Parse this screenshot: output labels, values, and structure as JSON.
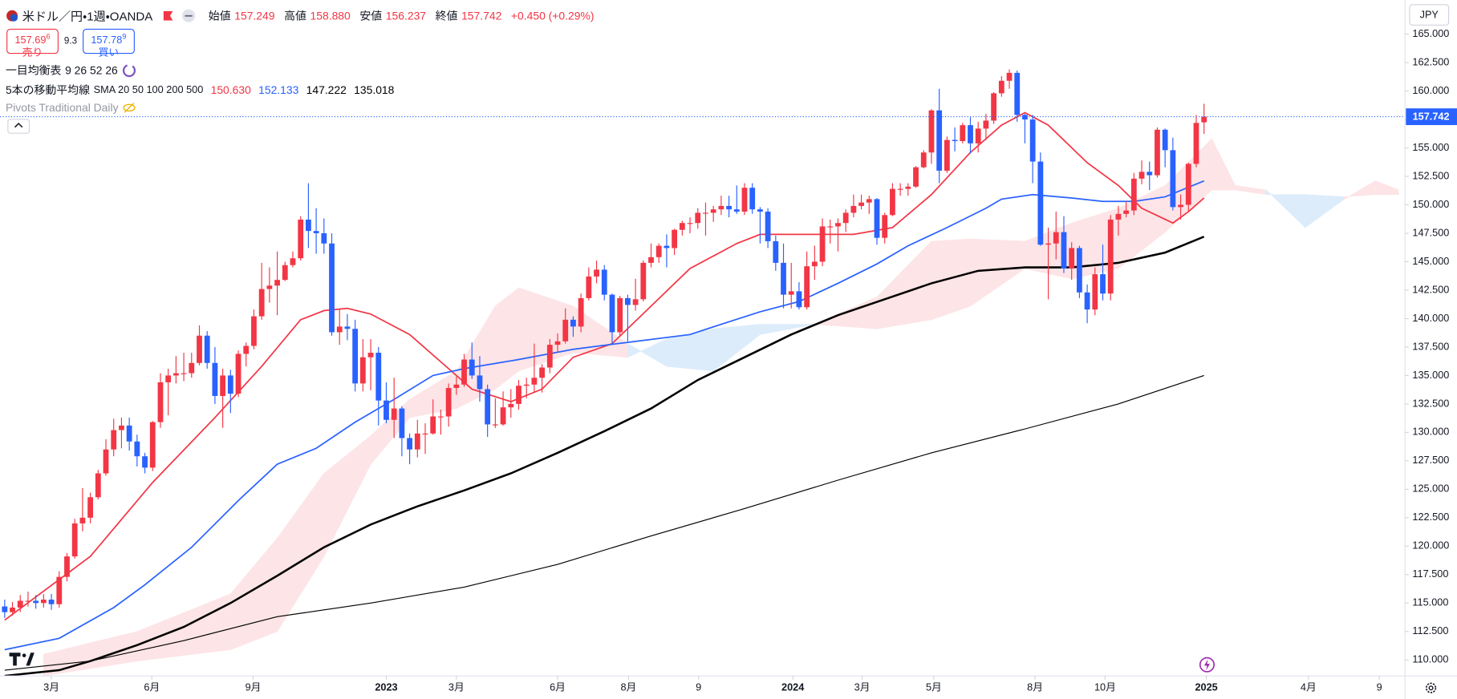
{
  "chart_data": {
    "type": "candlestick",
    "title": "米ドル／円・1週・OANDA",
    "ohlc_legend": [
      {
        "label": "始値",
        "value": "157.249"
      },
      {
        "label": "高値",
        "value": "158.880"
      },
      {
        "label": "安値",
        "value": "156.237"
      },
      {
        "label": "終値",
        "value": "157.742"
      }
    ],
    "change": "+0.450 (+0.29%)",
    "sell": {
      "price": "157.69",
      "pip": "6",
      "label": "売り"
    },
    "spread": "9.3",
    "buy": {
      "price": "157.78",
      "pip": "9",
      "label": "買い"
    },
    "indicators": [
      {
        "name": "一目均衡表",
        "params": "9 26 52 26"
      },
      {
        "name": "5本の移動平均線",
        "params": "SMA 20 50 100 200 500",
        "values": [
          "150.630",
          "152.133",
          "147.222",
          "135.018"
        ]
      },
      {
        "name": "Pivots Traditional Daily"
      }
    ],
    "currency": "JPY",
    "last_price": 157.742,
    "up_color": "#f23645",
    "down_color": "#2962ff",
    "open": [
      114.7,
      114.2,
      114.6,
      115.2,
      115.2,
      115.0,
      115.3,
      114.9,
      117.3,
      119.1,
      122.0,
      122.5,
      124.3,
      126.4,
      128.5,
      130.2,
      130.6,
      129.2,
      127.9,
      126.9,
      130.9,
      134.4,
      135.0,
      135.2,
      135.2,
      136.1,
      138.5,
      136.1,
      133.2,
      135.0,
      133.4,
      136.9,
      137.6,
      140.2,
      142.6,
      142.9,
      143.4,
      144.7,
      145.3,
      148.7,
      147.7,
      147.5,
      146.6,
      138.8,
      139.3,
      139.1,
      134.3,
      136.6,
      137.0,
      132.8,
      131.1,
      132.1,
      129.5,
      128.5,
      129.9,
      129.9,
      131.4,
      131.4,
      133.9,
      134.2,
      136.4,
      135.0,
      133.8,
      130.7,
      130.7,
      132.2,
      132.5,
      134.1,
      134.2,
      134.8,
      135.7,
      137.7,
      138.0,
      139.9,
      139.3,
      141.8,
      143.7,
      144.3,
      142.1,
      138.8,
      141.8,
      141.2,
      141.7,
      144.9,
      145.4,
      146.4,
      146.2,
      147.8,
      148.4,
      148.4,
      149.3,
      149.3,
      149.6,
      149.9,
      149.6,
      149.4,
      151.5,
      149.6,
      149.4,
      146.8,
      144.9,
      142.1,
      142.4,
      141.0,
      144.6,
      145.0,
      148.1,
      148.1,
      148.4,
      149.3,
      149.9,
      150.2,
      150.5,
      147.1,
      149.1,
      151.4,
      151.4,
      151.6,
      153.3,
      154.6,
      158.3,
      153.0,
      155.7,
      155.6,
      157.0,
      155.4,
      156.7,
      157.4,
      159.8,
      160.9,
      161.6,
      157.9,
      157.5,
      153.8,
      146.5,
      146.6,
      147.6,
      144.4,
      146.2,
      142.3,
      140.8,
      143.9,
      142.2,
      148.7,
      149.2,
      149.5,
      152.3,
      152.9,
      152.6,
      156.6,
      154.8,
      149.8,
      150.0,
      153.6,
      157.249
    ],
    "high": [
      115.3,
      115.1,
      115.7,
      116.0,
      115.7,
      115.8,
      115.8,
      117.8,
      119.4,
      122.4,
      125.1,
      124.7,
      126.7,
      129.4,
      131.2,
      131.3,
      131.3,
      129.8,
      128.2,
      131.0,
      135.2,
      135.6,
      136.7,
      137.0,
      137.0,
      139.4,
      138.9,
      137.5,
      135.6,
      135.5,
      137.2,
      137.9,
      140.8,
      144.9,
      144.5,
      145.9,
      145.0,
      145.9,
      149.0,
      151.9,
      149.7,
      148.8,
      147.5,
      140.8,
      140.4,
      139.9,
      138.2,
      138.2,
      137.5,
      134.4,
      134.8,
      132.3,
      129.9,
      131.1,
      130.8,
      132.9,
      132.0,
      134.3,
      134.9,
      136.9,
      137.9,
      136.7,
      134.2,
      133.0,
      133.6,
      133.8,
      134.6,
      134.8,
      137.8,
      136.0,
      138.2,
      138.7,
      140.9,
      140.2,
      142.2,
      144.5,
      145.1,
      144.7,
      142.2,
      142.0,
      142.1,
      143.5,
      145.1,
      146.6,
      146.6,
      147.4,
      147.9,
      148.6,
      148.9,
      149.7,
      150.2,
      149.9,
      150.8,
      150.8,
      151.7,
      151.9,
      151.9,
      149.8,
      149.7,
      147.3,
      146.6,
      144.9,
      143.2,
      145.9,
      146.4,
      148.8,
      148.7,
      148.8,
      149.6,
      150.9,
      150.9,
      150.8,
      150.6,
      149.3,
      151.9,
      151.9,
      151.9,
      153.4,
      154.8,
      158.4,
      160.2,
      156.0,
      156.8,
      157.2,
      157.7,
      157.3,
      158.0,
      159.9,
      161.3,
      161.9,
      161.8,
      158.0,
      157.9,
      154.6,
      148.0,
      149.4,
      149.0,
      146.7,
      146.4,
      143.0,
      144.5,
      146.5,
      149.1,
      149.9,
      150.3,
      152.8,
      153.9,
      153.8,
      156.8,
      156.7,
      155.9,
      150.9,
      153.7,
      157.9,
      158.88
    ],
    "low": [
      113.7,
      113.9,
      114.2,
      114.7,
      114.5,
      114.6,
      114.4,
      114.6,
      116.9,
      118.9,
      121.3,
      122.0,
      124.1,
      126.2,
      127.9,
      128.6,
      128.4,
      127.0,
      126.4,
      126.6,
      130.4,
      131.5,
      134.3,
      134.5,
      134.8,
      135.9,
      135.6,
      132.5,
      130.4,
      131.7,
      133.1,
      135.8,
      137.3,
      139.9,
      141.4,
      140.3,
      143.3,
      144.5,
      145.1,
      146.2,
      145.7,
      145.7,
      138.5,
      137.7,
      138.1,
      133.6,
      133.6,
      133.7,
      130.6,
      130.8,
      129.5,
      127.9,
      127.2,
      127.8,
      128.1,
      129.8,
      129.8,
      130.5,
      133.3,
      134.0,
      134.7,
      132.7,
      129.6,
      130.4,
      130.6,
      131.3,
      132.0,
      133.0,
      133.5,
      133.5,
      135.2,
      137.0,
      137.8,
      138.4,
      138.8,
      141.6,
      143.1,
      141.6,
      137.7,
      138.4,
      138.0,
      140.7,
      141.5,
      144.5,
      144.9,
      144.5,
      145.6,
      147.3,
      147.5,
      147.9,
      147.3,
      148.5,
      149.1,
      148.9,
      149.2,
      149.1,
      149.2,
      146.6,
      146.2,
      144.2,
      140.9,
      140.9,
      140.8,
      140.8,
      143.4,
      144.6,
      146.6,
      145.9,
      147.6,
      148.9,
      149.6,
      149.2,
      146.5,
      146.6,
      149.0,
      150.8,
      150.8,
      151.5,
      153.2,
      153.6,
      151.9,
      152.8,
      154.7,
      155.4,
      154.5,
      154.6,
      155.7,
      157.1,
      159.5,
      160.2,
      157.3,
      155.4,
      151.9,
      146.4,
      141.7,
      145.2,
      144.0,
      143.4,
      141.8,
      139.6,
      140.3,
      141.6,
      141.6,
      147.3,
      148.9,
      149.1,
      151.8,
      151.3,
      152.4,
      153.3,
      149.5,
      148.7,
      149.4,
      153.3,
      156.237
    ],
    "close": [
      114.2,
      114.6,
      115.2,
      115.2,
      115.0,
      115.3,
      114.9,
      117.3,
      119.1,
      122.0,
      122.5,
      124.3,
      126.4,
      128.5,
      130.2,
      130.6,
      129.2,
      127.9,
      126.9,
      130.9,
      134.4,
      135.0,
      135.2,
      135.2,
      136.1,
      138.5,
      136.1,
      133.2,
      135.0,
      133.4,
      136.9,
      137.6,
      140.2,
      142.6,
      142.9,
      143.4,
      144.7,
      145.3,
      148.7,
      147.7,
      147.5,
      146.6,
      138.8,
      139.3,
      139.1,
      134.3,
      136.6,
      137.0,
      132.8,
      131.1,
      132.1,
      129.5,
      128.5,
      129.9,
      129.9,
      131.4,
      131.4,
      133.9,
      134.2,
      136.4,
      135.0,
      133.8,
      130.7,
      130.7,
      132.2,
      132.5,
      134.1,
      134.2,
      134.8,
      135.7,
      137.7,
      138.0,
      139.9,
      139.3,
      141.8,
      143.7,
      144.3,
      142.1,
      138.8,
      141.8,
      141.2,
      141.7,
      144.9,
      145.4,
      146.4,
      146.2,
      147.8,
      148.4,
      148.4,
      149.3,
      149.3,
      149.6,
      149.9,
      149.6,
      149.4,
      151.5,
      149.6,
      149.4,
      146.8,
      144.9,
      142.1,
      142.4,
      141.0,
      144.6,
      145.0,
      148.1,
      148.1,
      148.4,
      149.3,
      149.9,
      150.2,
      150.5,
      147.1,
      149.1,
      151.4,
      151.4,
      151.6,
      153.3,
      154.6,
      158.3,
      153.0,
      155.7,
      155.6,
      157.0,
      155.4,
      156.7,
      157.4,
      159.8,
      160.9,
      161.6,
      157.9,
      157.5,
      153.8,
      146.5,
      146.6,
      147.6,
      144.4,
      146.2,
      142.3,
      140.8,
      143.9,
      142.2,
      148.7,
      149.2,
      149.5,
      152.3,
      152.9,
      152.6,
      156.6,
      154.8,
      149.8,
      150.0,
      153.6,
      157.2,
      157.742
    ],
    "lines": [
      {
        "color": "#f23645",
        "width": 1.5,
        "x": [
          0,
          11,
          19,
          27,
          33,
          38,
          41,
          44,
          47,
          52,
          56,
          60,
          65,
          69,
          73,
          78,
          83,
          88,
          94,
          97,
          101,
          104,
          109,
          114,
          119,
          124,
          128,
          131,
          134,
          139,
          143,
          146,
          150,
          152,
          154
        ],
        "values": [
          113.5,
          119.1,
          125.6,
          131.3,
          135.8,
          139.9,
          140.7,
          140.9,
          140.4,
          138.6,
          136.2,
          133.8,
          132.7,
          133.8,
          136.6,
          137.8,
          141.1,
          144.4,
          146.6,
          147.4,
          147.4,
          147.4,
          147.4,
          148.0,
          150.9,
          154.6,
          157.0,
          158.1,
          157.0,
          153.7,
          151.7,
          149.7,
          148.4,
          149.4,
          150.6
        ]
      },
      {
        "color": "#2962ff",
        "width": 1.5,
        "x": [
          0,
          7,
          14,
          18,
          24,
          30,
          35,
          40,
          45,
          50,
          55,
          59,
          66,
          73,
          81,
          88,
          92,
          97,
          102,
          107,
          112,
          116,
          121,
          126,
          128,
          132,
          137,
          141,
          145,
          149,
          154
        ],
        "values": [
          110.9,
          111.9,
          114.6,
          116.6,
          119.9,
          124.0,
          127.2,
          128.6,
          130.9,
          132.9,
          135.0,
          135.6,
          136.4,
          137.3,
          138.0,
          138.6,
          139.5,
          140.6,
          141.5,
          143.1,
          144.8,
          146.4,
          148.0,
          149.7,
          150.5,
          150.9,
          150.6,
          150.3,
          150.3,
          150.7,
          152.1
        ]
      },
      {
        "color": "#000000",
        "width": 2.2,
        "x": [
          0,
          7,
          11,
          17,
          23,
          29,
          35,
          41,
          47,
          53,
          59,
          65,
          71,
          77,
          83,
          89,
          95,
          101,
          107,
          113,
          119,
          125,
          131,
          137,
          143,
          149,
          154
        ],
        "values": [
          108.6,
          109.1,
          109.9,
          111.3,
          112.9,
          115.0,
          117.4,
          119.9,
          121.9,
          123.5,
          124.9,
          126.4,
          128.2,
          130.1,
          132.1,
          134.6,
          136.6,
          138.6,
          140.3,
          141.7,
          143.1,
          144.2,
          144.5,
          144.5,
          144.9,
          145.8,
          147.2
        ]
      },
      {
        "color": "#000000",
        "width": 1,
        "x": [
          0,
          11,
          23,
          35,
          47,
          59,
          71,
          83,
          95,
          107,
          119,
          131,
          143,
          154
        ],
        "values": [
          109.1,
          109.9,
          111.7,
          113.8,
          115.0,
          116.4,
          118.4,
          120.9,
          123.3,
          125.8,
          128.2,
          130.3,
          132.5,
          135.0
        ]
      }
    ],
    "cloud": {
      "up_color": "#fde4e6",
      "down_color": "#dcecfb",
      "x": [
        5,
        17,
        29,
        35,
        41,
        47,
        52,
        58,
        63,
        66,
        73,
        80,
        85,
        91,
        97,
        104,
        112,
        119,
        124,
        131,
        137,
        143,
        149,
        155,
        158,
        162,
        167,
        172,
        176,
        179
      ],
      "span_a": [
        110.5,
        112.5,
        115.8,
        120.7,
        126.4,
        129.7,
        132.9,
        135.4,
        141.1,
        142.7,
        141.1,
        137.8,
        135.8,
        135.4,
        138.6,
        139.5,
        141.9,
        146.8,
        147.0,
        146.8,
        148.4,
        149.7,
        151.7,
        155.8,
        151.7,
        151.3,
        148.0,
        150.5,
        152.1,
        151.3
      ],
      "span_b": [
        108.6,
        109.9,
        110.9,
        112.5,
        119.1,
        127.2,
        131.3,
        132.1,
        133.8,
        135.4,
        137.0,
        136.6,
        138.2,
        139.1,
        139.5,
        139.5,
        139.1,
        139.9,
        141.1,
        144.4,
        143.5,
        144.4,
        147.6,
        151.3,
        151.3,
        150.9,
        150.9,
        150.7,
        150.9,
        150.9
      ]
    },
    "xlim": [
      -0.6,
      179.8
    ],
    "xticks": [
      {
        "value": 6,
        "label": "3月"
      },
      {
        "value": 18.9,
        "label": "6月"
      },
      {
        "value": 31.9,
        "label": "9月"
      },
      {
        "value": 49,
        "label": "2023"
      },
      {
        "value": 58,
        "label": "3月"
      },
      {
        "value": 71,
        "label": "6月"
      },
      {
        "value": 80.1,
        "label": "8月"
      },
      {
        "value": 89.1,
        "label": "9"
      },
      {
        "value": 101.2,
        "label": "2024"
      },
      {
        "value": 110.1,
        "label": "3月"
      },
      {
        "value": 119.3,
        "label": "5月"
      },
      {
        "value": 132.3,
        "label": "8月"
      },
      {
        "value": 141.3,
        "label": "10月"
      },
      {
        "value": 154.3,
        "label": "2025"
      },
      {
        "value": 167.4,
        "label": "4月"
      },
      {
        "value": 176.5,
        "label": "9"
      }
    ],
    "ylim": [
      108.6,
      168.0
    ],
    "yticks": [
      {
        "value": 165,
        "label": "165.000"
      },
      {
        "value": 162.5,
        "label": "162.500"
      },
      {
        "value": 160,
        "label": "160.000"
      },
      {
        "value": 157.5,
        "label": "157.500"
      },
      {
        "value": 155,
        "label": "155.000"
      },
      {
        "value": 152.5,
        "label": "152.500"
      },
      {
        "value": 150,
        "label": "150.000"
      },
      {
        "value": 147.5,
        "label": "147.500"
      },
      {
        "value": 145,
        "label": "145.000"
      },
      {
        "value": 142.5,
        "label": "142.500"
      },
      {
        "value": 140,
        "label": "140.000"
      },
      {
        "value": 137.5,
        "label": "137.500"
      },
      {
        "value": 135,
        "label": "135.000"
      },
      {
        "value": 132.5,
        "label": "132.500"
      },
      {
        "value": 130,
        "label": "130.000"
      },
      {
        "value": 127.5,
        "label": "127.500"
      },
      {
        "value": 125,
        "label": "125.000"
      },
      {
        "value": 122.5,
        "label": "122.500"
      },
      {
        "value": 120,
        "label": "120.000"
      },
      {
        "value": 117.5,
        "label": "117.500"
      },
      {
        "value": 115,
        "label": "115.000"
      },
      {
        "value": 112.5,
        "label": "112.500"
      },
      {
        "value": 110,
        "label": "110.000"
      }
    ],
    "grid": false
  }
}
